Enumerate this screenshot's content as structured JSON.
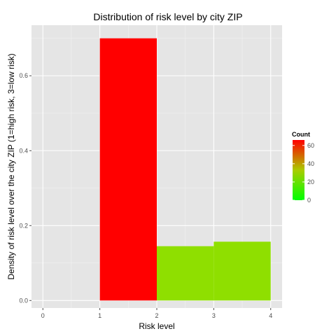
{
  "chart_data": {
    "type": "bar",
    "title": "Distribution of risk level by city ZIP",
    "xlabel": "Risk level",
    "ylabel": "Density of risk level over the city ZIP (1=high risk, 3=low risk)",
    "xlim": [
      -0.2,
      4.2
    ],
    "ylim": [
      -0.02,
      0.735
    ],
    "x_ticks": [
      0,
      1,
      2,
      3,
      4
    ],
    "x_tick_labels": [
      "0",
      "1",
      "2",
      "3",
      "4"
    ],
    "y_ticks": [
      0.0,
      0.2,
      0.4,
      0.6
    ],
    "y_tick_labels": [
      "0.0",
      "0.2",
      "0.4",
      "0.6"
    ],
    "bars": [
      {
        "x0": 1,
        "x1": 2,
        "density": 0.7,
        "count": 65,
        "color": "#ff0000"
      },
      {
        "x0": 2,
        "x1": 3,
        "density": 0.145,
        "count": 13,
        "color": "#8fdf00"
      },
      {
        "x0": 3,
        "x1": 4,
        "density": 0.157,
        "count": 14,
        "color": "#8fdf00"
      }
    ],
    "legend": {
      "title": "Count",
      "placement": "right",
      "low_color": "#00ff00",
      "high_color": "#ff0000",
      "range": [
        0,
        66
      ],
      "breaks": [
        0,
        20,
        40,
        60
      ],
      "break_labels": [
        "0",
        "20",
        "40",
        "60"
      ]
    },
    "grid": true,
    "panel_background": "#e5e5e5",
    "grid_major_color": "#ffffff",
    "grid_minor_color": "#f2f2f2"
  }
}
